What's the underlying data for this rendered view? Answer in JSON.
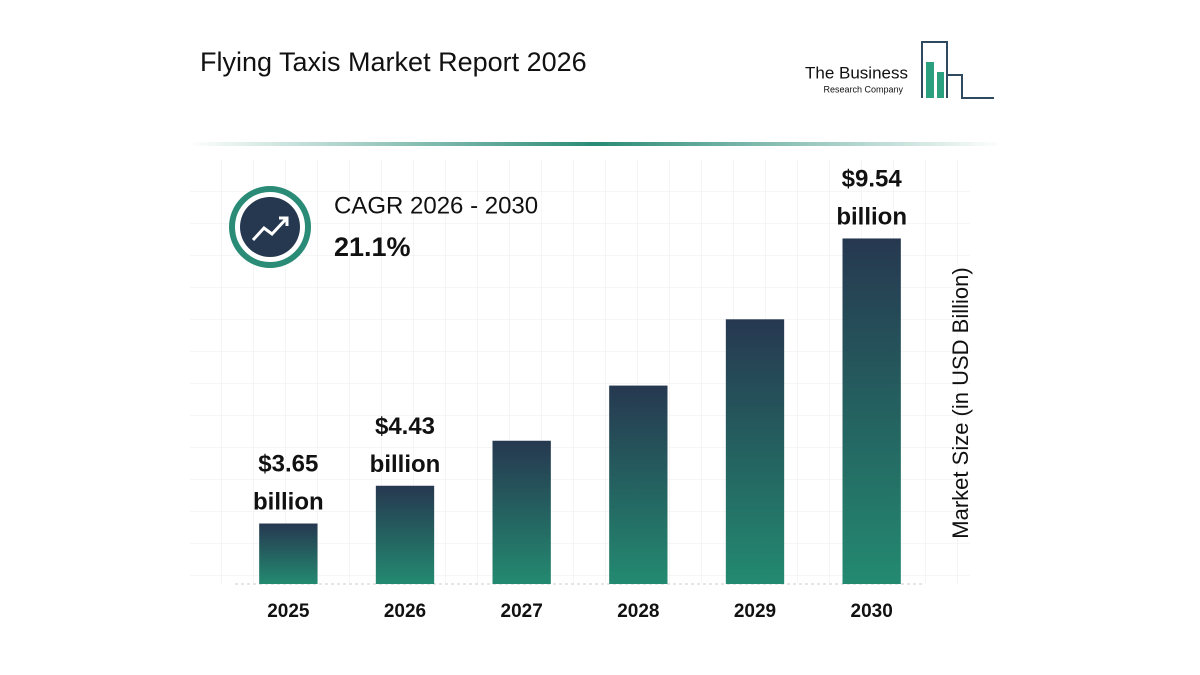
{
  "chart_data": {
    "type": "bar",
    "title": "Flying Taxis Market Report 2026",
    "categories": [
      "2025",
      "2026",
      "2027",
      "2028",
      "2029",
      "2030"
    ],
    "values": [
      3.65,
      4.43,
      5.36,
      6.5,
      7.87,
      9.54
    ],
    "value_labels": [
      "$3.65 billion",
      "$4.43 billion",
      null,
      null,
      null,
      "$9.54 billion"
    ],
    "gradient": [
      "#263850",
      "#238a70"
    ],
    "ylim": [
      2.4,
      10.5
    ],
    "y_label": "Market Size (in USD Billion)",
    "cagr_label": "CAGR 2026 - 2030",
    "cagr_value": "21.1%"
  },
  "logo": {
    "line1": "The Business",
    "line2": "Research Company"
  }
}
